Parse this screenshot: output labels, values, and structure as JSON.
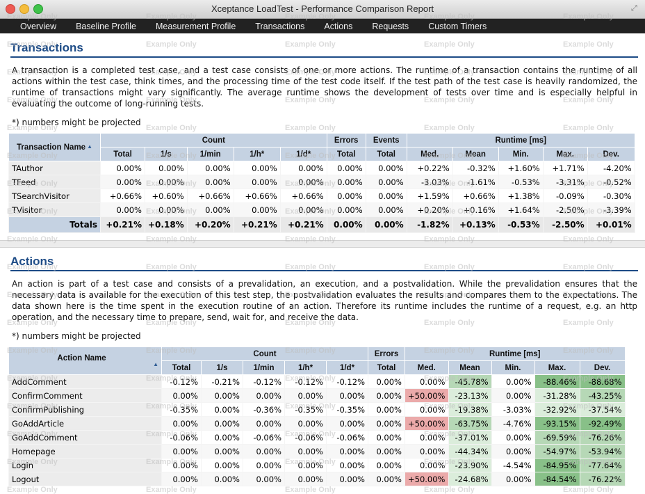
{
  "window": {
    "title": "Xceptance LoadTest - Performance Comparison Report"
  },
  "nav": [
    "Overview",
    "Baseline Profile",
    "Measurement Profile",
    "Transactions",
    "Actions",
    "Requests",
    "Custom Timers"
  ],
  "watermark": "Example Only",
  "transactions": {
    "heading": "Transactions",
    "description": "A transaction is a completed test case, and a test case consists of one or more actions. The runtime of a transaction contains the runtime of all actions within the test case, think times, and the processing time of the test code itself. If the test path of the test case is heavily randomized, the runtime of transactions might vary significantly. The average runtime shows the development of tests over time and is especially helpful in evaluating the outcome of long-running tests.",
    "note": "*) numbers might be projected",
    "name_header": "Transaction Name",
    "group_headers": {
      "count": "Count",
      "errors": "Errors",
      "events": "Events",
      "runtime": "Runtime [ms]"
    },
    "sub_headers": [
      "Total",
      "1/s",
      "1/min",
      "1/h*",
      "1/d*",
      "Total",
      "Total",
      "Med.",
      "Mean",
      "Min.",
      "Max.",
      "Dev."
    ],
    "rows": [
      {
        "name": "TAuthor",
        "values": [
          "0.00%",
          "0.00%",
          "0.00%",
          "0.00%",
          "0.00%",
          "0.00%",
          "0.00%",
          "+0.22%",
          "-0.32%",
          "+1.60%",
          "+1.71%",
          "-4.20%"
        ]
      },
      {
        "name": "TFeed",
        "values": [
          "0.00%",
          "0.00%",
          "0.00%",
          "0.00%",
          "0.00%",
          "0.00%",
          "0.00%",
          "-3.03%",
          "-1.61%",
          "-0.53%",
          "-3.31%",
          "-0.52%"
        ]
      },
      {
        "name": "TSearchVisitor",
        "values": [
          "+0.66%",
          "+0.60%",
          "+0.66%",
          "+0.66%",
          "+0.66%",
          "0.00%",
          "0.00%",
          "+1.59%",
          "+0.66%",
          "+1.38%",
          "-0.09%",
          "-0.30%"
        ]
      },
      {
        "name": "TVisitor",
        "values": [
          "0.00%",
          "0.00%",
          "0.00%",
          "0.00%",
          "0.00%",
          "0.00%",
          "0.00%",
          "+0.20%",
          "+0.16%",
          "+1.64%",
          "-2.50%",
          "-3.39%"
        ]
      }
    ],
    "totals_label": "Totals",
    "totals": [
      "+0.21%",
      "+0.18%",
      "+0.20%",
      "+0.21%",
      "+0.21%",
      "0.00%",
      "0.00%",
      "-1.82%",
      "+0.13%",
      "-0.53%",
      "-2.50%",
      "+0.01%"
    ]
  },
  "actions": {
    "heading": "Actions",
    "description": "An action is part of a test case and consists of a prevalidation, an execution, and a postvalidation. While the prevalidation ensures that the necessary data is available for the execution of this test step, the postvalidation evaluates the results and compares them to the expectations. The data shown here is the time spent in the execution routine of an action. Therefore its runtime includes the runtime of a request, e.g. an http operation, and the necessary time to prepare, send, wait for, and receive the data.",
    "note": "*) numbers might be projected",
    "name_header": "Action Name",
    "group_headers": {
      "count": "Count",
      "errors": "Errors",
      "runtime": "Runtime [ms]"
    },
    "sub_headers": [
      "Total",
      "1/s",
      "1/min",
      "1/h*",
      "1/d*",
      "Total",
      "Med.",
      "Mean",
      "Min.",
      "Max.",
      "Dev."
    ],
    "rows": [
      {
        "name": "AddComment",
        "values": [
          "-0.12%",
          "-0.21%",
          "-0.12%",
          "-0.12%",
          "-0.12%",
          "0.00%",
          "0.00%",
          "-45.78%",
          "0.00%",
          "-88.46%",
          "-88.68%"
        ],
        "shade": [
          "",
          "",
          "",
          "",
          "",
          "",
          "",
          "good2",
          "",
          "good3",
          "good3"
        ]
      },
      {
        "name": "ConfirmComment",
        "values": [
          "0.00%",
          "0.00%",
          "0.00%",
          "0.00%",
          "0.00%",
          "0.00%",
          "+50.00%",
          "-23.13%",
          "0.00%",
          "-31.28%",
          "-43.25%"
        ],
        "shade": [
          "",
          "",
          "",
          "",
          "",
          "",
          "bad2",
          "good1",
          "",
          "good1",
          "good2"
        ]
      },
      {
        "name": "ConfirmPublishing",
        "values": [
          "-0.35%",
          "0.00%",
          "-0.36%",
          "-0.35%",
          "-0.35%",
          "0.00%",
          "0.00%",
          "-19.38%",
          "-3.03%",
          "-32.92%",
          "-37.54%"
        ],
        "shade": [
          "",
          "",
          "",
          "",
          "",
          "",
          "",
          "good1",
          "",
          "good1",
          "good1"
        ]
      },
      {
        "name": "GoAddArticle",
        "values": [
          "0.00%",
          "0.00%",
          "0.00%",
          "0.00%",
          "0.00%",
          "0.00%",
          "+50.00%",
          "-63.75%",
          "-4.76%",
          "-93.15%",
          "-92.49%"
        ],
        "shade": [
          "",
          "",
          "",
          "",
          "",
          "",
          "bad2",
          "good2",
          "",
          "good3",
          "good3"
        ]
      },
      {
        "name": "GoAddComment",
        "values": [
          "-0.06%",
          "0.00%",
          "-0.06%",
          "-0.06%",
          "-0.06%",
          "0.00%",
          "0.00%",
          "-37.01%",
          "0.00%",
          "-69.59%",
          "-76.26%"
        ],
        "shade": [
          "",
          "",
          "",
          "",
          "",
          "",
          "",
          "good1",
          "",
          "good2",
          "good2"
        ]
      },
      {
        "name": "Homepage",
        "values": [
          "0.00%",
          "0.00%",
          "0.00%",
          "0.00%",
          "0.00%",
          "0.00%",
          "0.00%",
          "-44.34%",
          "0.00%",
          "-54.97%",
          "-53.94%"
        ],
        "shade": [
          "",
          "",
          "",
          "",
          "",
          "",
          "",
          "good1",
          "",
          "good2",
          "good2"
        ]
      },
      {
        "name": "Login",
        "values": [
          "0.00%",
          "0.00%",
          "0.00%",
          "0.00%",
          "0.00%",
          "0.00%",
          "0.00%",
          "-23.90%",
          "-4.54%",
          "-84.95%",
          "-77.64%"
        ],
        "shade": [
          "",
          "",
          "",
          "",
          "",
          "",
          "",
          "good1",
          "",
          "good3",
          "good2"
        ]
      },
      {
        "name": "Logout",
        "values": [
          "0.00%",
          "0.00%",
          "0.00%",
          "0.00%",
          "0.00%",
          "0.00%",
          "+50.00%",
          "-24.68%",
          "0.00%",
          "-84.54%",
          "-76.22%"
        ],
        "shade": [
          "",
          "",
          "",
          "",
          "",
          "",
          "bad2",
          "good1",
          "",
          "good3",
          "good2"
        ]
      }
    ]
  },
  "colors": {
    "heading": "#1d4b86",
    "header_bg": "#c5d2e2",
    "nav_bg": "#222222",
    "improve": "#88c088",
    "regress": "#ebaaaa"
  }
}
